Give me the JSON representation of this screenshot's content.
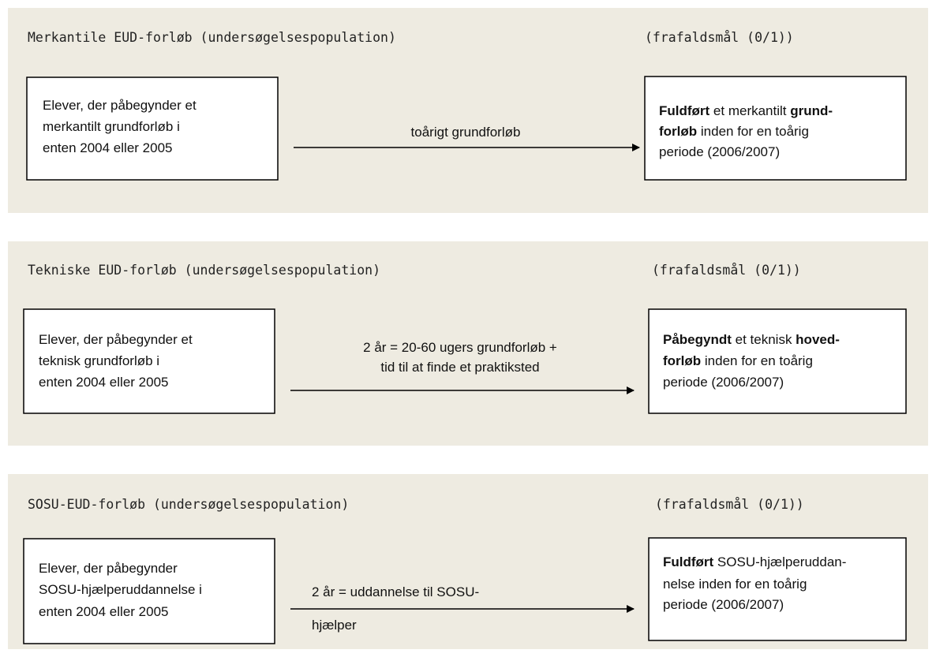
{
  "panels": [
    {
      "title": "Merkantile EUD-forløb (undersøgelsespopulation)",
      "outcome": "(frafaldsmål (0/1))",
      "start": [
        "Elever, der påbegynder et",
        "merkantilt grundforløb i",
        "enten 2004 eller 2005"
      ],
      "arrow": [
        "toårigt grundforløb"
      ],
      "result": [
        [
          {
            "text": "Fuldført",
            "bold": true
          },
          {
            "text": " et merkantilt "
          },
          {
            "text": "grund-",
            "bold": true
          }
        ],
        [
          {
            "text": "forløb",
            "bold": true
          },
          {
            "text": " inden for en toårig"
          }
        ],
        [
          {
            "text": "periode (2006/2007)"
          }
        ]
      ]
    },
    {
      "title": "Tekniske EUD-forløb (undersøgelsespopulation)",
      "outcome": "(frafaldsmål (0/1))",
      "start": [
        "Elever, der påbegynder et",
        "teknisk grundforløb i",
        "enten 2004 eller 2005"
      ],
      "arrow": [
        "2 år = 20-60 ugers grundforløb +",
        "tid til at finde et praktiksted"
      ],
      "result": [
        [
          {
            "text": "Påbegyndt",
            "bold": true
          },
          {
            "text": " et teknisk "
          },
          {
            "text": "hoved-",
            "bold": true
          }
        ],
        [
          {
            "text": "forløb",
            "bold": true
          },
          {
            "text": " inden for en toårig"
          }
        ],
        [
          {
            "text": "periode (2006/2007)"
          }
        ]
      ]
    },
    {
      "title": "SOSU-EUD-forløb (undersøgelsespopulation)",
      "outcome": "(frafaldsmål (0/1))",
      "start": [
        "Elever, der påbegynder",
        "SOSU-hjælperuddannelse i",
        "enten 2004 eller 2005"
      ],
      "arrow": [
        "2 år = uddannelse til SOSU-",
        "hjælper"
      ],
      "result": [
        [
          {
            "text": "Fuldført",
            "bold": true
          },
          {
            "text": " SOSU-hjælperuddan-"
          }
        ],
        [
          {
            "text": "nelse inden for en toårig"
          }
        ],
        [
          {
            "text": "periode (2006/2007)"
          }
        ]
      ]
    }
  ]
}
